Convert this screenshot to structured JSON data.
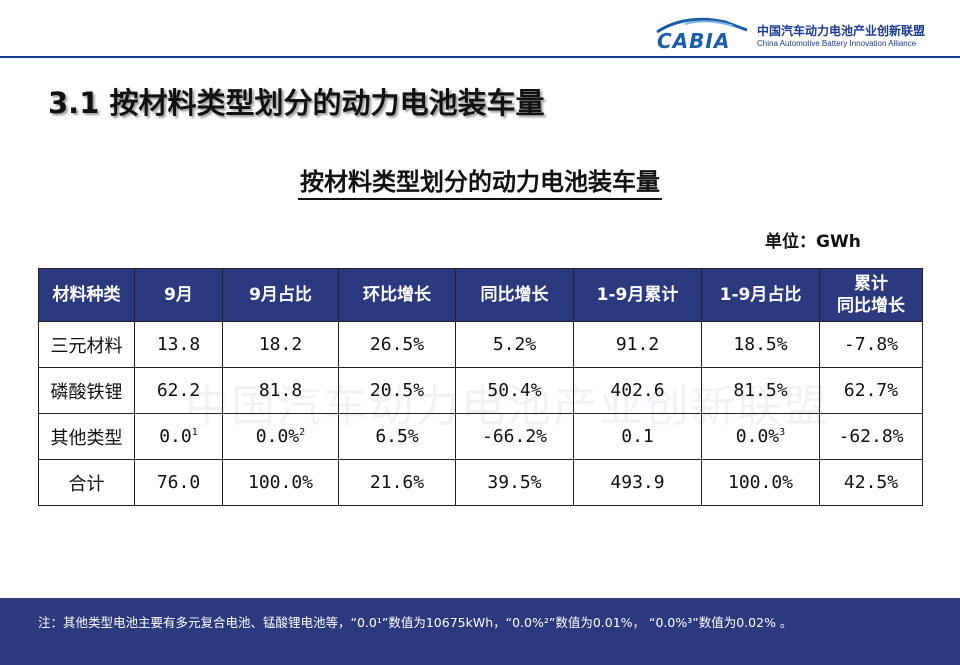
{
  "header": {
    "logo_word": "CABIA",
    "org_cn": "中国汽车动力电池产业创新联盟",
    "org_en": "China Automotive Battery Innovation Alliance"
  },
  "slide_title": "3.1  按材料类型划分的动力电池装车量",
  "table_title": "按材料类型划分的动力电池装车量",
  "unit": "单位：GWh",
  "table": {
    "headers": [
      "材料种类",
      "9月",
      "9月占比",
      "环比增长",
      "同比增长",
      "1-9月累计",
      "1-9月占比",
      "累计\n同比增长"
    ],
    "rows": [
      {
        "type": "三元材料",
        "sep": "13.8",
        "sep_share": "18.2",
        "mom": "26.5%",
        "yoy": "5.2%",
        "cum": "91.2",
        "cum_share": "18.5%",
        "cum_yoy": "-7.8%"
      },
      {
        "type": "磷酸铁锂",
        "sep": "62.2",
        "sep_share": "81.8",
        "mom": "20.5%",
        "yoy": "50.4%",
        "cum": "402.6",
        "cum_share": "81.5%",
        "cum_yoy": "62.7%"
      },
      {
        "type": "其他类型",
        "sep": "0.0",
        "sep_sup": "1",
        "sep_share": "0.0%",
        "sep_share_sup": "2",
        "mom": "6.5%",
        "yoy": "-66.2%",
        "cum": "0.1",
        "cum_share": "0.0%",
        "cum_share_sup": "3",
        "cum_yoy": "-62.8%"
      },
      {
        "type": "合计",
        "sep": "76.0",
        "sep_share": "100.0%",
        "mom": "21.6%",
        "yoy": "39.5%",
        "cum": "493.9",
        "cum_share": "100.0%",
        "cum_yoy": "42.5%"
      }
    ]
  },
  "watermark": "中国汽车动力电池产业创新联盟",
  "footer_note": "注：其他类型电池主要有多元复合电池、锰酸锂电池等，“0.0¹”数值为10675kWh，“0.0%²”数值为0.01%， “0.0%³”数值为0.02% 。",
  "colors": {
    "primary": "#2b3a7e",
    "logo_blue": "#1b5ea8",
    "header_line": "#1b3b8f"
  }
}
